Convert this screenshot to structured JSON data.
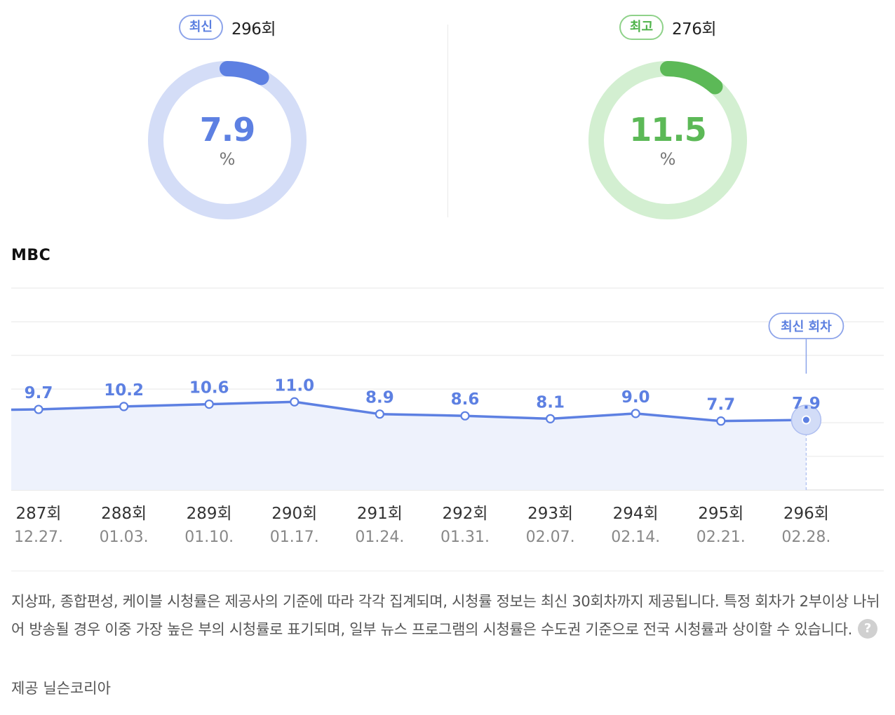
{
  "summary": {
    "latest": {
      "badge": "최신",
      "episode": "296회",
      "value": "7.9",
      "unit": "%",
      "ratio": 0.079,
      "color": "#5d80e2",
      "track": "#d4ddf7"
    },
    "best": {
      "badge": "최고",
      "episode": "276회",
      "value": "11.5",
      "unit": "%",
      "ratio": 0.115,
      "color": "#5cb957",
      "track": "#d3efd1"
    }
  },
  "channel": "MBC",
  "chart_data": {
    "type": "area",
    "categories": [
      "287회",
      "288회",
      "289회",
      "290회",
      "291회",
      "292회",
      "293회",
      "294회",
      "295회",
      "296회"
    ],
    "dates": [
      "12.27.",
      "01.03.",
      "01.10.",
      "01.17.",
      "01.24.",
      "01.31.",
      "02.07.",
      "02.14.",
      "02.21.",
      "02.28."
    ],
    "values": [
      9.7,
      10.2,
      10.6,
      11.0,
      8.9,
      8.6,
      8.1,
      9.0,
      7.7,
      7.9
    ],
    "labels": [
      "9.7",
      "10.2",
      "10.6",
      "11.0",
      "8.9",
      "8.6",
      "8.1",
      "9.0",
      "7.7",
      "7.9"
    ],
    "highlight_index": 9,
    "highlight_label": "최신 회차",
    "grid": true,
    "line_color": "#5d80e2"
  },
  "notice": {
    "text": "지상파, 종합편성, 케이블 시청률은 제공사의 기준에 따라 각각 집계되며, 시청률 정보는 최신 30회차까지 제공됩니다. 특정 회차가 2부이상 나뉘어 방송될 경우 이중 가장 높은 부의 시청률로 표기되며, 일부 뉴스 프로그램의 시청률은 수도권 기준으로 전국 시청률과 상이할 수 있습니다.",
    "help_icon": "?",
    "source": "제공 닐슨코리아"
  }
}
